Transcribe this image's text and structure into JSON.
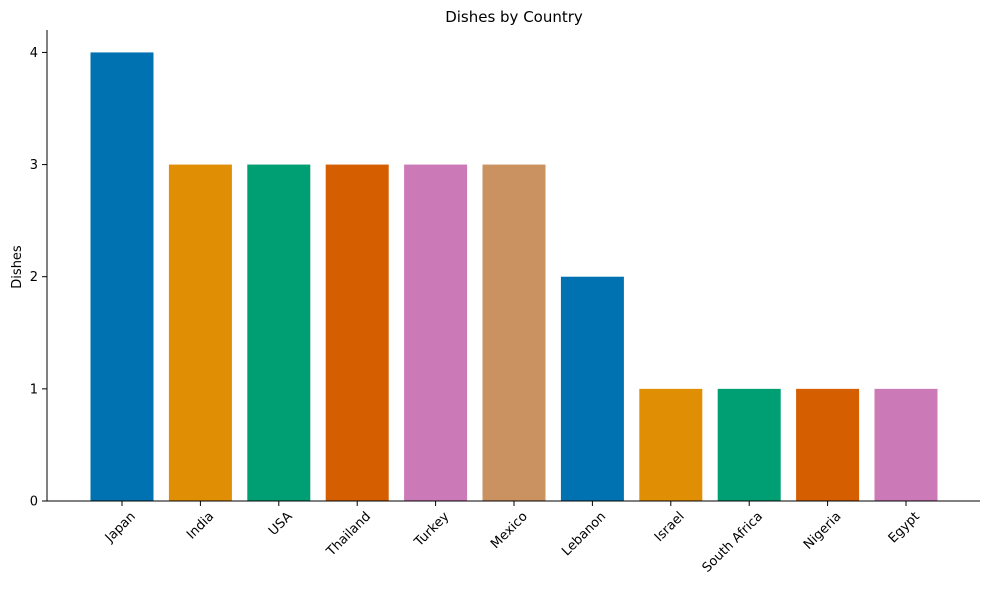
{
  "chart_data": {
    "type": "bar",
    "title": "Dishes by Country",
    "xlabel": "",
    "ylabel": "Dishes",
    "categories": [
      "Japan",
      "India",
      "USA",
      "Thailand",
      "Turkey",
      "Mexico",
      "Lebanon",
      "Israel",
      "South Africa",
      "Nigeria",
      "Egypt"
    ],
    "values": [
      4,
      3,
      3,
      3,
      3,
      3,
      2,
      1,
      1,
      1,
      1
    ],
    "colors": [
      "#0072b2",
      "#e08f04",
      "#009e73",
      "#d55e00",
      "#cc79b8",
      "#ca9161",
      "#0072b2",
      "#e08f04",
      "#009e73",
      "#d55e00",
      "#cc79b8"
    ],
    "ylim": [
      0,
      4.2
    ],
    "yticks": [
      0,
      1,
      2,
      3,
      4
    ],
    "grid": false,
    "legend": "none"
  }
}
